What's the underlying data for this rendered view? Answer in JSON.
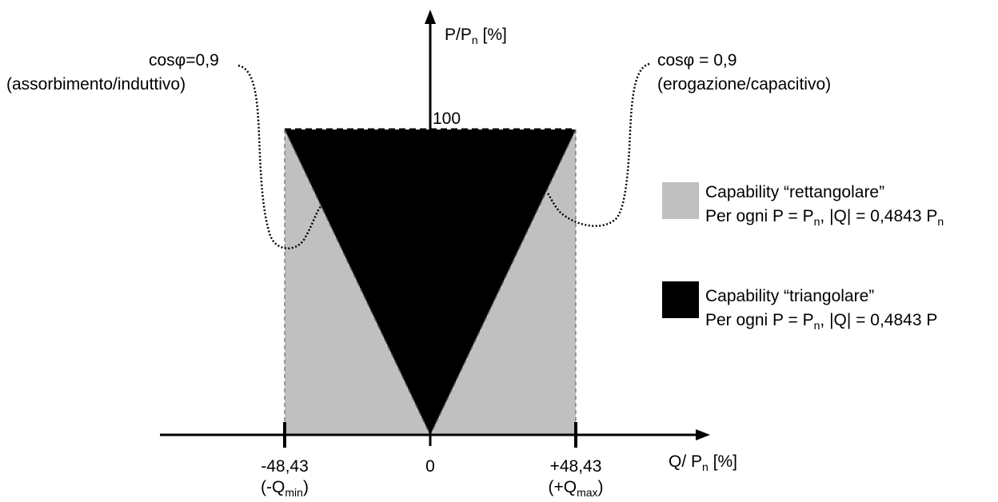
{
  "axes": {
    "y_label_main": "P/P",
    "y_label_sub": "n",
    "y_label_unit": " [%]",
    "x_label_main": "Q/ P",
    "x_label_sub": "n",
    "x_label_unit": " [%]",
    "tick_100": "100",
    "tick_minus": "-48,43",
    "tick_minus_note_pre": "(-Q",
    "tick_minus_note_sub": "min",
    "tick_minus_note_post": ")",
    "tick_zero": "0",
    "tick_plus": "+48,43",
    "tick_plus_note_pre": "(+Q",
    "tick_plus_note_sub": "max",
    "tick_plus_note_post": ")"
  },
  "annotations": {
    "left_line1": "cosφ=0,9",
    "left_line2": "(assorbimento/induttivo)",
    "right_line1": "cosφ = 0,9",
    "right_line2": "(erogazione/capacitivo)"
  },
  "legend": {
    "rect_title": "Capability “rettangolare”",
    "rect_desc_pre": "Per ogni P = P",
    "rect_desc_sub1": "n",
    "rect_desc_mid": ", |Q| = 0,4843 P",
    "rect_desc_sub2": "n",
    "tri_title": "Capability “triangolare”",
    "tri_desc_pre": "Per ogni P = P",
    "tri_desc_sub1": "n",
    "tri_desc_post": ", |Q| = 0,4843 P"
  },
  "colors": {
    "rectangular": "#c0c0c0",
    "triangular": "#000000"
  }
}
